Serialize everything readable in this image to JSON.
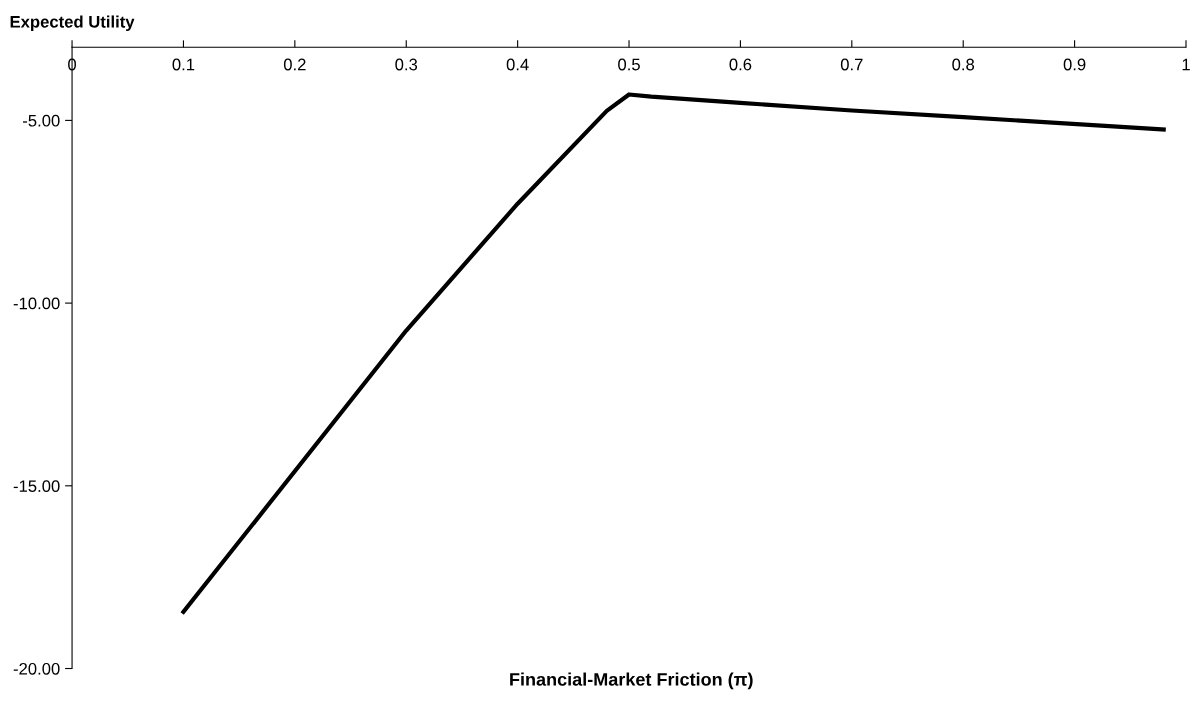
{
  "chart_data": {
    "type": "line",
    "title": "Expected Utility",
    "xlabel": "Financial-Market Friction (π)",
    "x": [
      0.1,
      0.3,
      0.4,
      0.48,
      0.5,
      0.52,
      0.6,
      0.7,
      0.8,
      0.98
    ],
    "series": [
      {
        "color": "#000000",
        "values": [
          -18.45,
          -10.75,
          -7.28,
          -4.74,
          -4.29,
          -4.35,
          -4.52,
          -4.73,
          -4.91,
          -5.25
        ]
      }
    ],
    "xlim": [
      0,
      1
    ],
    "xticks": [
      0,
      0.1,
      0.2,
      0.3,
      0.4,
      0.5,
      0.6,
      0.7,
      0.8,
      0.9,
      1
    ],
    "ylim": [
      -20,
      -3
    ],
    "yticks": [
      {
        "value": -5,
        "label": "-5.00"
      },
      {
        "value": -10,
        "label": "-10.00"
      },
      {
        "value": -15,
        "label": "-15.00"
      },
      {
        "value": -20,
        "label": "-20.00"
      }
    ],
    "grid": false,
    "legend": false,
    "marker": "none",
    "line_style": "solid"
  }
}
